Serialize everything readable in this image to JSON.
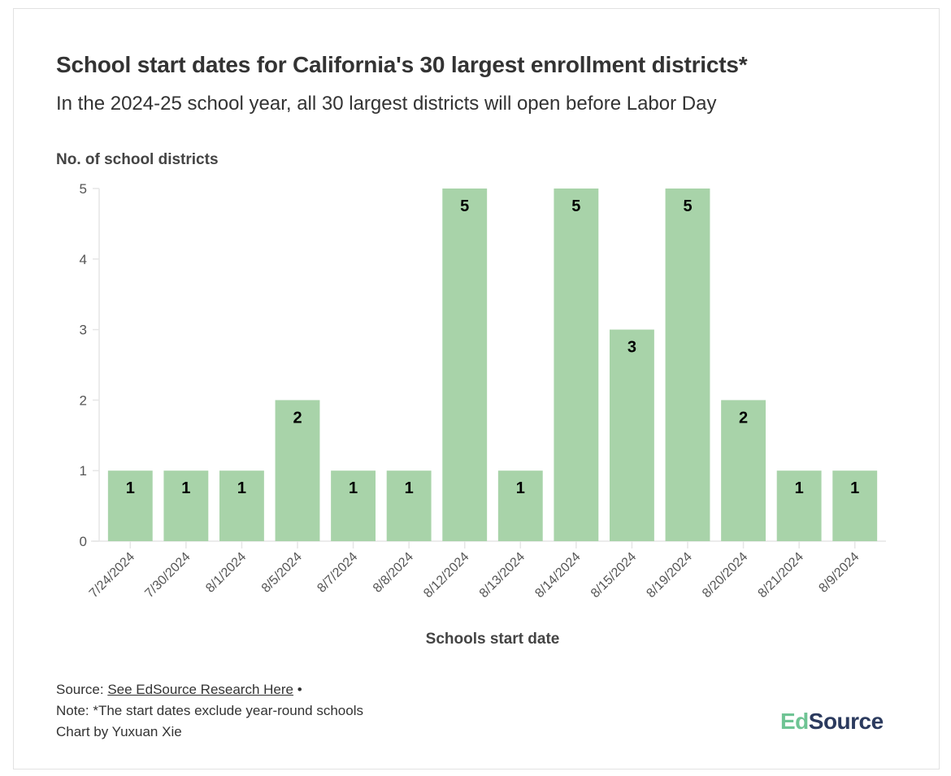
{
  "header": {
    "title": "School start dates for California's 30 largest enrollment districts*",
    "subtitle": "In the 2024-25 school year, all 30 largest districts will open before Labor Day"
  },
  "chart_data": {
    "type": "bar",
    "title": "School start dates for California's 30 largest enrollment districts*",
    "subtitle": "In the 2024-25 school year, all 30 largest districts will open before Labor Day",
    "xlabel": "Schools start date",
    "ylabel": "No. of school districts",
    "categories": [
      "7/24/2024",
      "7/30/2024",
      "8/1/2024",
      "8/5/2024",
      "8/7/2024",
      "8/8/2024",
      "8/12/2024",
      "8/13/2024",
      "8/14/2024",
      "8/15/2024",
      "8/19/2024",
      "8/20/2024",
      "8/21/2024",
      "8/9/2024"
    ],
    "values": [
      1,
      1,
      1,
      2,
      1,
      1,
      5,
      1,
      5,
      3,
      5,
      2,
      1,
      1
    ],
    "ylim": [
      0,
      5
    ],
    "yticks": [
      "0",
      "1",
      "2",
      "3",
      "4",
      "5"
    ],
    "data_labels": true,
    "grid": false,
    "bar_color": "#a8d3a9",
    "label_color": "#000000"
  },
  "footer": {
    "source_prefix": "Source: ",
    "source_link": "See EdSource Research Here",
    "source_suffix": " •",
    "note": "Note: *The start dates exclude year-round schools",
    "credit": "Chart by Yuxuan Xie"
  },
  "logo": {
    "ed": "Ed",
    "source": "Source"
  }
}
